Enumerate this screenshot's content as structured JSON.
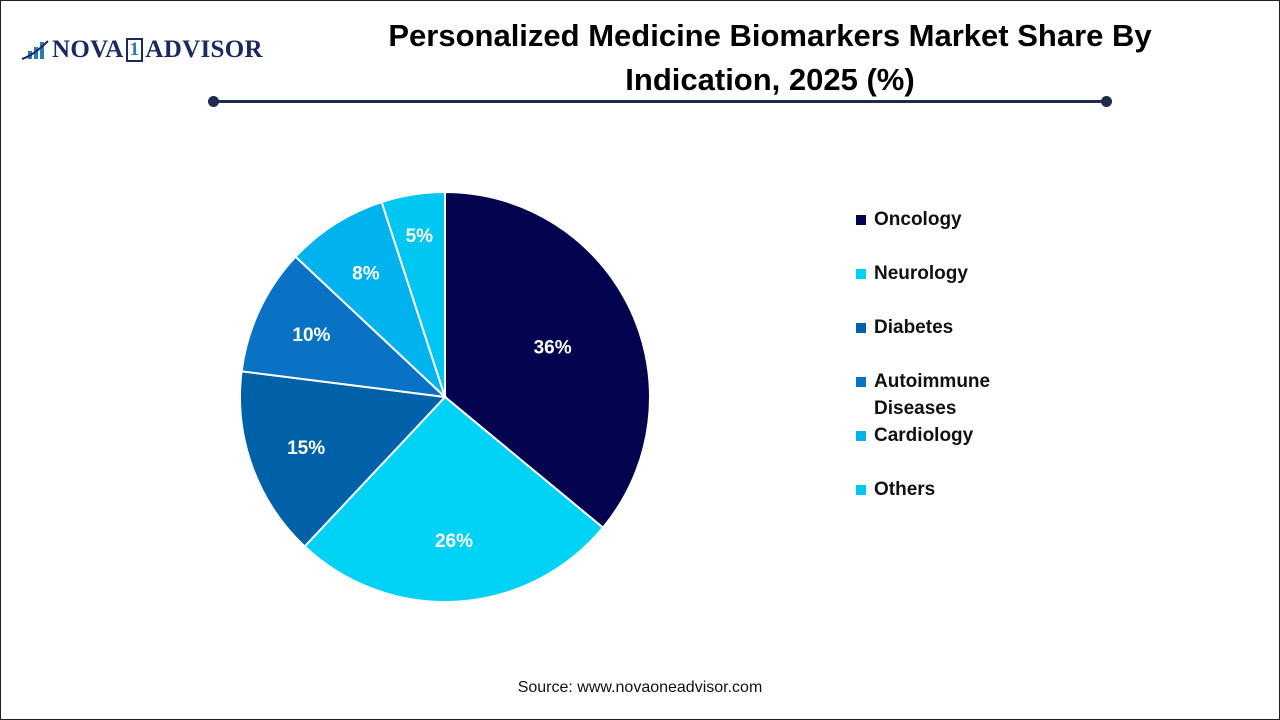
{
  "logo": {
    "text_left": "NOVA",
    "text_mid": "1",
    "text_right": "ADVISOR"
  },
  "header": {
    "title": "Personalized Medicine Biomarkers Market Share By Indication, 2025 (%)"
  },
  "source": "Source: www.novaoneadvisor.com",
  "chart_data": {
    "type": "pie",
    "title": "Personalized Medicine Biomarkers Market Share By Indication, 2025 (%)",
    "legend_position": "right",
    "categories": [
      "Oncology",
      "Neurology",
      "Diabetes",
      "Autoimmune Diseases",
      "Cardiology",
      "Others"
    ],
    "values": [
      36,
      26,
      15,
      10,
      8,
      5
    ],
    "labels": [
      "36%",
      "26%",
      "15%",
      "10%",
      "8%",
      "5%"
    ],
    "colors": [
      "#03034f",
      "#00d2f5",
      "#0061a8",
      "#0a72c4",
      "#00b2ee",
      "#00c6f2"
    ]
  }
}
